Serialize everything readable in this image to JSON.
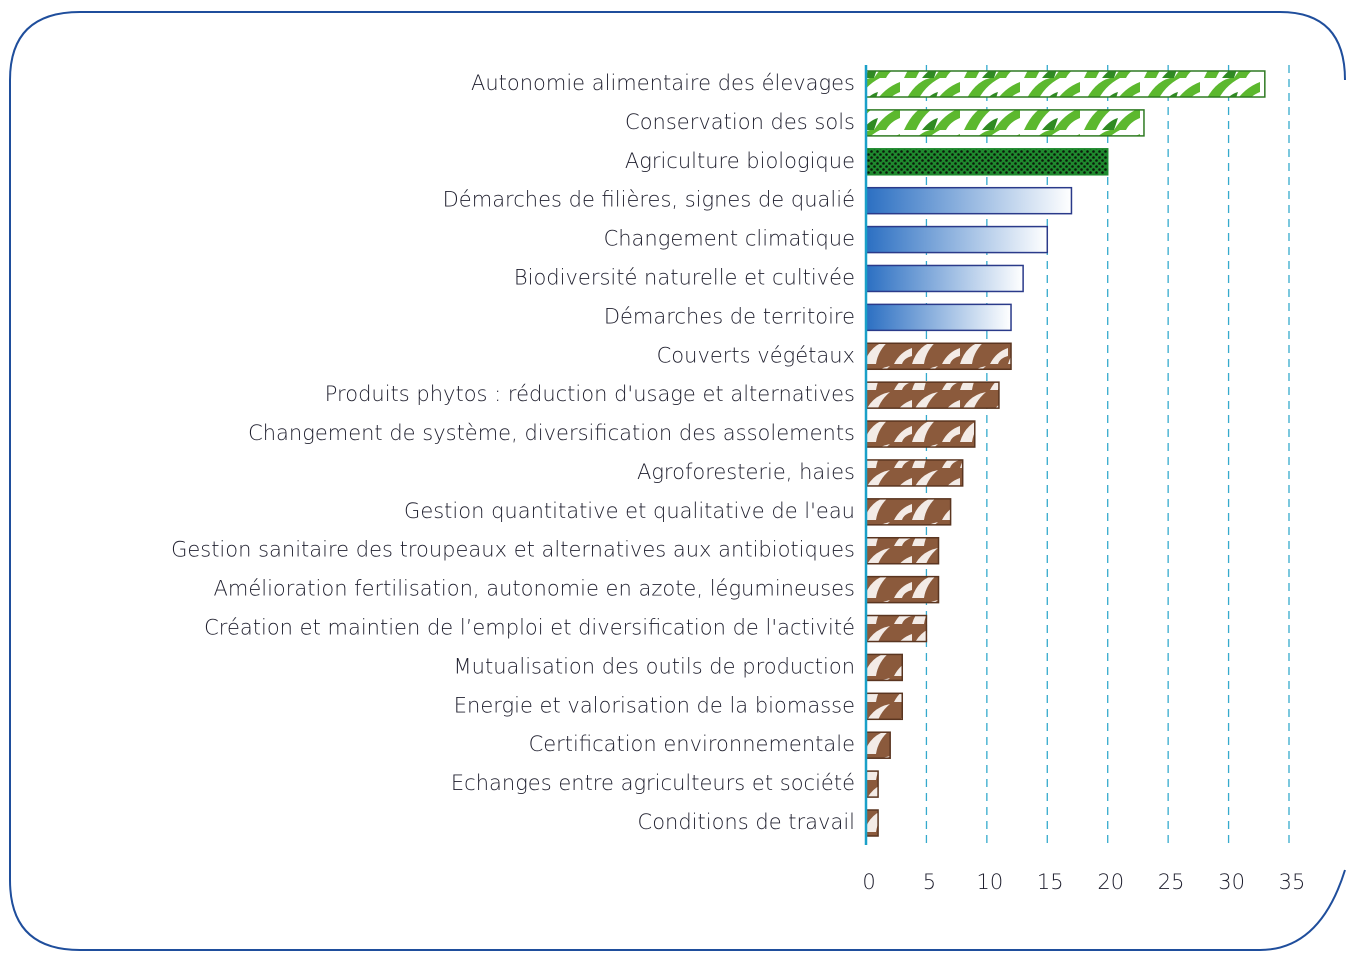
{
  "chart_data": {
    "type": "hbar",
    "categories": [
      "Autonomie alimentaire des élevages",
      "Conservation des sols",
      "Agriculture biologique",
      "Démarches de filières, signes de qualié",
      "Changement climatique",
      "Biodiversité naturelle et cultivée",
      "Démarches de territoire",
      "Couverts végétaux",
      "Produits phytos : réduction d'usage et alternatives",
      "Changement de système, diversification des assolements",
      "Agroforesterie, haies",
      "Gestion quantitative et qualitative de l'eau",
      "Gestion sanitaire des troupeaux et alternatives aux antibiotiques",
      "Amélioration fertilisation, autonomie en azote, légumineuses",
      "Création et maintien de l’emploi et diversification de l'activité",
      "Mutualisation des outils de production",
      "Energie et valorisation de la biomasse",
      "Certification environnementale",
      "Echanges entre agriculteurs et société",
      "Conditions de travail"
    ],
    "values": [
      33,
      23,
      20,
      17,
      15,
      13,
      12,
      12,
      11,
      9,
      8,
      7,
      6,
      6,
      5,
      3,
      3,
      2,
      1,
      1
    ],
    "colors": [
      "#5cb82e",
      "#5cb82e",
      "#1f8a2e",
      "#2b6fc2",
      "#2b6fc2",
      "#2b6fc2",
      "#2b6fc2",
      "#8b5a3c",
      "#8b5a3c",
      "#8b5a3c",
      "#8b5a3c",
      "#8b5a3c",
      "#8b5a3c",
      "#8b5a3c",
      "#8b5a3c",
      "#8b5a3c",
      "#8b5a3c",
      "#8b5a3c",
      "#8b5a3c",
      "#8b5a3c"
    ],
    "xlim": [
      0,
      35
    ],
    "xticks": [
      0,
      5,
      10,
      15,
      20,
      25,
      30,
      35
    ],
    "grid": true
  }
}
